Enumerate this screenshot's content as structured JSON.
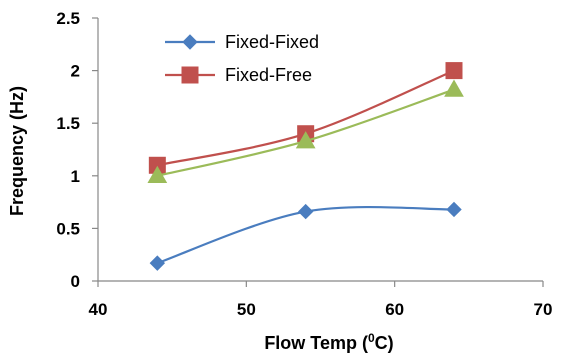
{
  "chart_data": {
    "type": "line",
    "xlabel_prefix": "Flow Temp (",
    "xlabel_sup": "0",
    "xlabel_suffix": "C)",
    "ylabel": "Frequency (Hz)",
    "xlim": [
      40,
      70
    ],
    "ylim": [
      0,
      2.5
    ],
    "x_ticks": [
      "40",
      "50",
      "60",
      "70"
    ],
    "y_ticks": [
      "0",
      "0.5",
      "1",
      "1.5",
      "2",
      "2.5"
    ],
    "x": [
      44,
      54,
      64
    ],
    "series": [
      {
        "name": "Fixed-Fixed",
        "values": [
          0.17,
          0.66,
          0.68
        ],
        "color": "#4a7dbf",
        "marker": "diamond"
      },
      {
        "name": "Fixed-Free",
        "values": [
          1.1,
          1.4,
          2.0
        ],
        "color": "#c0504d",
        "marker": "square"
      },
      {
        "values": [
          1.0,
          1.33,
          1.82
        ],
        "color": "#9bbb59",
        "marker": "triangle"
      }
    ],
    "legend": "top-left",
    "grid": false
  }
}
